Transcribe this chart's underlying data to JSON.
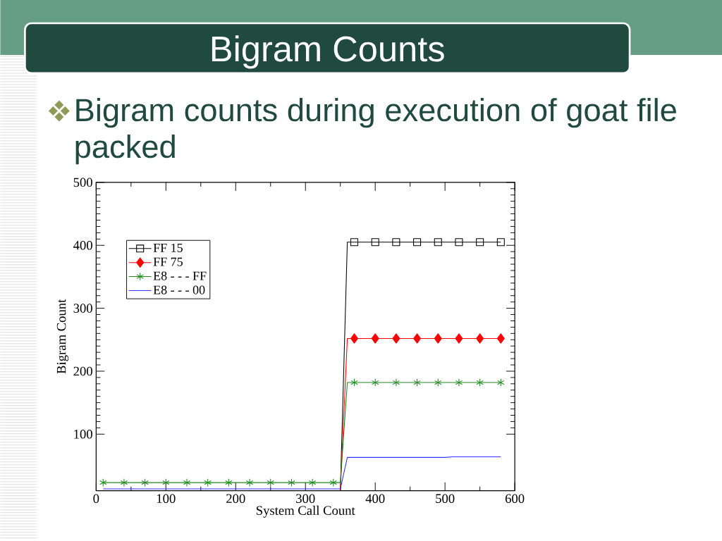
{
  "chart_data": {
    "type": "line",
    "title": "Bigram Counts",
    "subtitle": "Bigram counts during execution of goat file packed",
    "xlabel": "System Call Count",
    "ylabel": "Bigram Count",
    "x": [
      10,
      40,
      70,
      100,
      130,
      160,
      190,
      220,
      250,
      280,
      310,
      340,
      350,
      360,
      370,
      400,
      430,
      460,
      490,
      520,
      550,
      580
    ],
    "series": [
      {
        "name": "FF 15",
        "color": "#000000",
        "marker": "square",
        "values": [
          null,
          null,
          null,
          null,
          null,
          null,
          null,
          null,
          null,
          null,
          null,
          null,
          10,
          405,
          405,
          405,
          405,
          405,
          405,
          405,
          405,
          405
        ]
      },
      {
        "name": "FF 75",
        "color": "#ff0000",
        "marker": "diamond",
        "values": [
          null,
          null,
          null,
          null,
          null,
          null,
          null,
          null,
          null,
          null,
          null,
          null,
          10,
          252,
          252,
          252,
          252,
          252,
          252,
          252,
          252,
          252
        ]
      },
      {
        "name": "E8 - - - FF",
        "color": "#228b22",
        "marker": "cross",
        "values": [
          23,
          23,
          23,
          23,
          23,
          23,
          23,
          23,
          23,
          23,
          23,
          23,
          23,
          182,
          182,
          182,
          182,
          182,
          182,
          182,
          182,
          182
        ]
      },
      {
        "name": "E8 - - - 00",
        "color": "#3333ff",
        "marker": "none",
        "x": [
          10,
          350,
          360,
          500,
          510,
          580
        ],
        "values": [
          13,
          13,
          63,
          63,
          64,
          64
        ]
      }
    ],
    "xlim": [
      0,
      600
    ],
    "ylim": [
      10,
      500
    ],
    "xticks": [
      0,
      100,
      200,
      300,
      400,
      500,
      600
    ],
    "yticks": [
      100,
      200,
      300,
      400,
      500
    ],
    "legend": "top left",
    "line_style": "solid"
  }
}
